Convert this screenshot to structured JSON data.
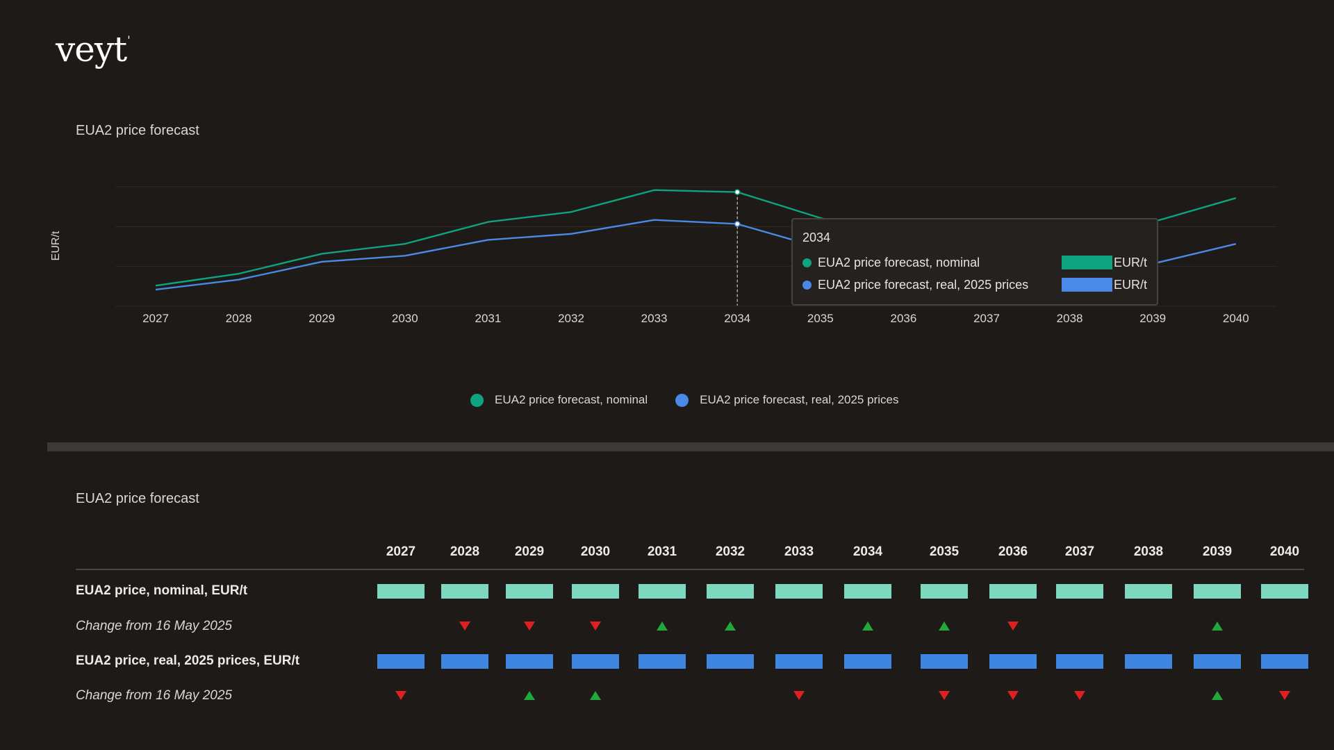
{
  "brand": {
    "name": "veyt",
    "mark": "'"
  },
  "colors": {
    "nominal": "#10a37f",
    "real": "#4a8ae6",
    "nominal_table": "#7ed8bf",
    "real_table": "#3f86e0",
    "up": "#22a83a",
    "down": "#e02020"
  },
  "chart_data": {
    "type": "line",
    "title": "EUA2 price forecast",
    "ylabel": "EUR/t",
    "x": [
      "2027",
      "2028",
      "2029",
      "2030",
      "2031",
      "2032",
      "2033",
      "2034",
      "2035",
      "2036",
      "2037",
      "2038",
      "2039",
      "2040"
    ],
    "series": [
      {
        "name": "EUA2 price forecast, nominal",
        "values": [
          80,
          83,
          88,
          90.5,
          96,
          98.5,
          104,
          103.5,
          97,
          91,
          89,
          88,
          96,
          102
        ]
      },
      {
        "name": "EUA2 price forecast, real, 2025 prices",
        "values": [
          79,
          81.5,
          86,
          87.5,
          91.5,
          93,
          96.5,
          95.5,
          89.5,
          84.5,
          82,
          80.5,
          85.5,
          90.5
        ]
      }
    ],
    "ylim": [
      75,
      105
    ],
    "grid": true,
    "legend": "bottom",
    "hover_index": 7
  },
  "tooltip": {
    "year": "2034",
    "rows": [
      {
        "label": "EUA2 price forecast, nominal",
        "unit": "EUR/t"
      },
      {
        "label": "EUA2 price forecast, real, 2025 prices",
        "unit": "EUR/t"
      }
    ]
  },
  "table": {
    "title": "EUA2 price forecast",
    "years": [
      "2027",
      "2028",
      "2029",
      "2030",
      "2031",
      "2032",
      "2033",
      "2034",
      "2035",
      "2036",
      "2037",
      "2038",
      "2039",
      "2040"
    ],
    "rows": [
      {
        "label": "EUA2 price, nominal, EUR/t",
        "kind": "bars",
        "series": "nominal"
      },
      {
        "label": "Change from 16 May 2025",
        "kind": "change",
        "changes": [
          "",
          "down",
          "down",
          "down",
          "up",
          "up",
          "",
          "up",
          "up",
          "down",
          "",
          "",
          "up",
          ""
        ]
      },
      {
        "label": "EUA2 price, real, 2025 prices, EUR/t",
        "kind": "bars",
        "series": "real"
      },
      {
        "label": "Change from 16 May 2025",
        "kind": "change",
        "changes": [
          "down",
          "",
          "up",
          "up",
          "",
          "",
          "down",
          "",
          "down",
          "down",
          "down",
          "",
          "up",
          "down"
        ]
      }
    ]
  }
}
